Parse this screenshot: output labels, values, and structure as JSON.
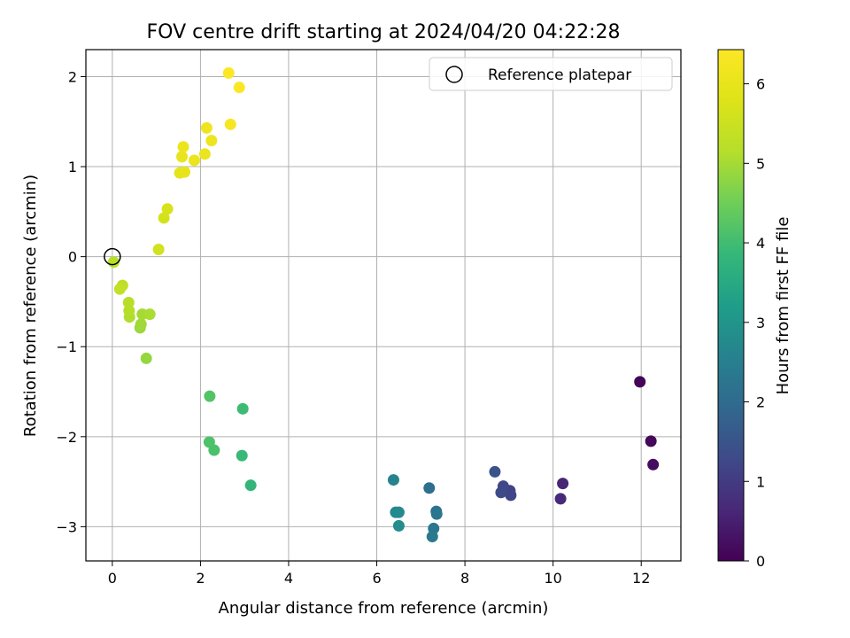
{
  "chart_data": {
    "type": "scatter",
    "title": "FOV centre drift starting at 2024/04/20 04:22:28",
    "xlabel": "Angular distance from reference (arcmin)",
    "ylabel": "Rotation from reference (arcmin)",
    "xlim": [
      -0.6,
      12.9
    ],
    "ylim": [
      -3.38,
      2.3
    ],
    "xticks": [
      0,
      2,
      4,
      6,
      8,
      10,
      12
    ],
    "yticks": [
      -3,
      -2,
      -1,
      0,
      1,
      2
    ],
    "grid": true,
    "legend": {
      "position": "top-right",
      "entries": [
        "Reference platepar"
      ]
    },
    "reference_point": {
      "x": 0,
      "y": 0
    },
    "colorbar": {
      "label": "Hours from first FF file",
      "range": [
        0,
        6.43
      ],
      "ticks": [
        0,
        1,
        2,
        3,
        4,
        5,
        6
      ],
      "colormap": "viridis"
    },
    "points": [
      {
        "x": 11.97,
        "y": -1.39,
        "h": 0.05
      },
      {
        "x": 12.22,
        "y": -2.05,
        "h": 0.12
      },
      {
        "x": 12.27,
        "y": -2.31,
        "h": 0.2
      },
      {
        "x": 10.22,
        "y": -2.52,
        "h": 0.6
      },
      {
        "x": 10.17,
        "y": -2.69,
        "h": 0.7
      },
      {
        "x": 9.02,
        "y": -2.6,
        "h": 1.15
      },
      {
        "x": 9.04,
        "y": -2.65,
        "h": 1.2
      },
      {
        "x": 8.87,
        "y": -2.55,
        "h": 1.25
      },
      {
        "x": 8.82,
        "y": -2.62,
        "h": 1.3
      },
      {
        "x": 8.68,
        "y": -2.39,
        "h": 1.5
      },
      {
        "x": 7.19,
        "y": -2.57,
        "h": 2.1
      },
      {
        "x": 7.35,
        "y": -2.83,
        "h": 2.2
      },
      {
        "x": 7.36,
        "y": -2.86,
        "h": 2.25
      },
      {
        "x": 7.29,
        "y": -3.02,
        "h": 2.3
      },
      {
        "x": 7.26,
        "y": -3.11,
        "h": 2.35
      },
      {
        "x": 6.38,
        "y": -2.48,
        "h": 2.6
      },
      {
        "x": 6.43,
        "y": -2.84,
        "h": 2.7
      },
      {
        "x": 6.5,
        "y": -2.84,
        "h": 2.75
      },
      {
        "x": 6.5,
        "y": -2.99,
        "h": 2.8
      },
      {
        "x": 3.14,
        "y": -2.54,
        "h": 3.8
      },
      {
        "x": 2.94,
        "y": -2.21,
        "h": 3.9
      },
      {
        "x": 2.96,
        "y": -1.69,
        "h": 3.95
      },
      {
        "x": 2.31,
        "y": -2.15,
        "h": 4.1
      },
      {
        "x": 2.2,
        "y": -2.06,
        "h": 4.15
      },
      {
        "x": 2.21,
        "y": -1.55,
        "h": 4.2
      },
      {
        "x": 0.77,
        "y": -1.13,
        "h": 4.85
      },
      {
        "x": 0.63,
        "y": -0.79,
        "h": 4.9
      },
      {
        "x": 0.65,
        "y": -0.75,
        "h": 4.95
      },
      {
        "x": 0.68,
        "y": -0.64,
        "h": 5.0
      },
      {
        "x": 0.85,
        "y": -0.64,
        "h": 5.05
      },
      {
        "x": 0.39,
        "y": -0.67,
        "h": 5.1
      },
      {
        "x": 0.38,
        "y": -0.6,
        "h": 5.15
      },
      {
        "x": 0.37,
        "y": -0.51,
        "h": 5.2
      },
      {
        "x": 0.23,
        "y": -0.32,
        "h": 5.3
      },
      {
        "x": 0.17,
        "y": -0.36,
        "h": 5.35
      },
      {
        "x": 0.03,
        "y": -0.06,
        "h": 5.2
      },
      {
        "x": 1.05,
        "y": 0.08,
        "h": 5.6
      },
      {
        "x": 1.17,
        "y": 0.43,
        "h": 5.65
      },
      {
        "x": 1.25,
        "y": 0.53,
        "h": 5.7
      },
      {
        "x": 1.53,
        "y": 0.93,
        "h": 5.95
      },
      {
        "x": 1.64,
        "y": 0.94,
        "h": 6.0
      },
      {
        "x": 1.86,
        "y": 1.07,
        "h": 6.05
      },
      {
        "x": 1.58,
        "y": 1.11,
        "h": 6.02
      },
      {
        "x": 2.1,
        "y": 1.14,
        "h": 6.05
      },
      {
        "x": 1.61,
        "y": 1.22,
        "h": 6.08
      },
      {
        "x": 2.25,
        "y": 1.29,
        "h": 6.15
      },
      {
        "x": 2.14,
        "y": 1.43,
        "h": 6.15
      },
      {
        "x": 2.68,
        "y": 1.47,
        "h": 6.3
      },
      {
        "x": 2.88,
        "y": 1.88,
        "h": 6.38
      },
      {
        "x": 2.64,
        "y": 2.04,
        "h": 6.4
      }
    ]
  }
}
